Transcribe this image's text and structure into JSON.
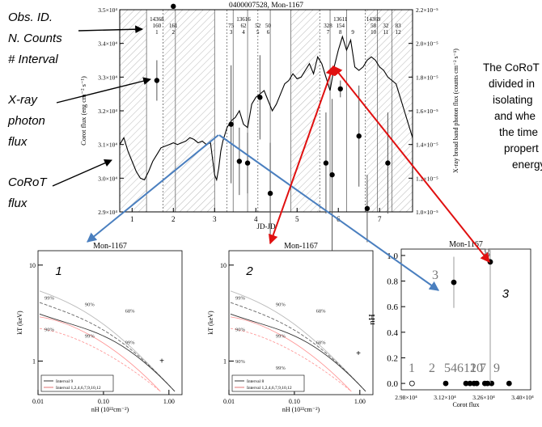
{
  "left_annotations": {
    "obs_id": "Obs. ID.",
    "n_counts": "N. Counts",
    "interval": "# Interval",
    "xray_1": "X-ray",
    "xray_2": "photon",
    "xray_3": "flux",
    "corot_1": "CoRoT",
    "corot_2": "flux"
  },
  "caption_lines": [
    "The CoRoT",
    "divided in",
    "isolating",
    "and whe",
    "the time",
    "propert",
    "energy"
  ],
  "arrow_colors": {
    "black": "#000000",
    "blue": "#4a7fbf",
    "red": "#e01010"
  },
  "chart_data": [
    {
      "type": "line",
      "title": "0400007528, Mon-1167",
      "xlabel": "JD-JD",
      "ylabel": "Corot flux (erg cm⁻² s⁻¹)",
      "y2label": "X-ray broad band photon flux (counts cm⁻² s⁻¹)",
      "xlim": [
        0.7,
        7.8
      ],
      "ylim": [
        29000,
        35000
      ],
      "y2lim": [
        1e-05,
        2.2e-05
      ],
      "xticks": [
        "1",
        "2",
        "3",
        "4",
        "5",
        "6",
        "7"
      ],
      "yticks": [
        "2.9×10⁴",
        "3.0×10⁴",
        "3.1×10⁴",
        "3.2×10⁴",
        "3.3×10⁴",
        "3.4×10⁴",
        "3.5×10⁴"
      ],
      "y2ticks": [
        "1.0×10⁻⁵",
        "1.2×10⁻⁵",
        "1.4×10⁻⁵",
        "1.6×10⁻⁵",
        "1.8×10⁻⁵",
        "2.0×10⁻⁵",
        "2.2×10⁻⁵"
      ],
      "hatched_x": [
        [
          0.7,
          1.35
        ],
        [
          1.75,
          3.0
        ],
        [
          4.85,
          5.55
        ],
        [
          6.65,
          7.8
        ]
      ],
      "interval_lines_x": [
        1.35,
        1.75,
        2.05,
        3.0,
        3.3,
        3.45,
        3.8,
        4.05,
        4.35,
        4.85,
        5.55,
        5.8,
        6.2,
        6.65,
        6.95,
        7.3
      ],
      "interval_labels": [
        {
          "x": 1.6,
          "lines": [
            "14368",
            "160",
            "1"
          ]
        },
        {
          "x": 2.0,
          "lines": [
            "",
            "161",
            "2"
          ]
        },
        {
          "x": 3.4,
          "lines": [
            "",
            "75",
            "3"
          ]
        },
        {
          "x": 3.7,
          "lines": [
            "13616",
            "62",
            "4"
          ]
        },
        {
          "x": 4.05,
          "lines": [
            "",
            "52",
            "5"
          ]
        },
        {
          "x": 4.3,
          "lines": [
            "",
            "50",
            "6"
          ]
        },
        {
          "x": 5.75,
          "lines": [
            "",
            "328",
            "7"
          ]
        },
        {
          "x": 6.05,
          "lines": [
            "13611",
            "154",
            "8"
          ]
        },
        {
          "x": 6.35,
          "lines": [
            "",
            "",
            "9"
          ]
        },
        {
          "x": 6.85,
          "lines": [
            "14369",
            "58",
            "10"
          ]
        },
        {
          "x": 7.15,
          "lines": [
            "",
            "32",
            "11"
          ]
        },
        {
          "x": 7.45,
          "lines": [
            "",
            "83",
            "12"
          ]
        }
      ],
      "corot_flux": {
        "x": [
          0.7,
          0.8,
          0.9,
          1.0,
          1.1,
          1.2,
          1.3,
          1.4,
          1.5,
          1.6,
          1.7,
          1.8,
          1.9,
          2.0,
          2.1,
          2.2,
          2.3,
          2.4,
          2.5,
          2.6,
          2.7,
          2.8,
          2.9,
          3.0,
          3.05,
          3.1,
          3.15,
          3.2,
          3.3,
          3.4,
          3.5,
          3.6,
          3.7,
          3.8,
          3.9,
          4.0,
          4.1,
          4.2,
          4.3,
          4.4,
          4.5,
          4.6,
          4.7,
          4.8,
          4.9,
          5.0,
          5.1,
          5.2,
          5.3,
          5.4,
          5.5,
          5.6,
          5.7,
          5.8,
          5.9,
          6.0,
          6.1,
          6.2,
          6.3,
          6.4,
          6.5,
          6.6,
          6.7,
          6.8,
          6.9,
          7.0,
          7.1,
          7.2,
          7.3,
          7.4,
          7.5,
          7.6,
          7.7,
          7.8
        ],
        "y": [
          31000,
          31200,
          30800,
          30500,
          30200,
          30000,
          29950,
          30200,
          30500,
          30700,
          30900,
          30950,
          31000,
          31050,
          31000,
          31050,
          31100,
          31200,
          31150,
          31050,
          31100,
          31000,
          31050,
          30100,
          29950,
          30300,
          30800,
          31100,
          31500,
          31700,
          31800,
          32000,
          31600,
          31500,
          32200,
          32400,
          32500,
          32600,
          32300,
          32000,
          32200,
          32500,
          32800,
          32900,
          33100,
          32950,
          33000,
          33200,
          33400,
          33100,
          33600,
          33400,
          33000,
          32600,
          33300,
          33800,
          34200,
          33800,
          34100,
          33300,
          33200,
          33300,
          33500,
          33600,
          33500,
          33300,
          33200,
          33000,
          32900,
          32800,
          32400,
          32000,
          31600,
          31200
        ]
      },
      "xray_flux": [
        {
          "x": 1.6,
          "y": 1.78e-05,
          "err": 1.2e-06
        },
        {
          "x": 2.0,
          "y": 2.22e-05,
          "err": 0.0
        },
        {
          "x": 3.4,
          "y": 1.52e-05,
          "err": 3.5e-06
        },
        {
          "x": 3.6,
          "y": 1.3e-05,
          "err": 2e-06
        },
        {
          "x": 3.8,
          "y": 1.29e-05,
          "err": 1.8e-06
        },
        {
          "x": 4.1,
          "y": 1.68e-05,
          "err": 2.5e-06
        },
        {
          "x": 4.35,
          "y": 1.11e-05,
          "err": 3e-06
        },
        {
          "x": 5.7,
          "y": 1.29e-05,
          "err": 3e-06
        },
        {
          "x": 5.85,
          "y": 1.22e-05,
          "err": 4.5e-06
        },
        {
          "x": 6.05,
          "y": 1.73e-05,
          "err": 5e-07
        },
        {
          "x": 6.5,
          "y": 1.45e-05,
          "err": 3e-06
        },
        {
          "x": 6.7,
          "y": 1.02e-05,
          "err": 2e-06
        },
        {
          "x": 7.2,
          "y": 1.29e-05,
          "err": 3e-06
        }
      ]
    },
    {
      "type": "contour",
      "panel_number": "1",
      "title": "Mon-1167",
      "xlabel": "nH (10²²cm⁻²)",
      "ylabel": "kT (keV)",
      "xticks": [
        "0.01",
        "0.10",
        "1.00"
      ],
      "yticks": [
        "1",
        "10"
      ],
      "contour_labels": [
        "99%",
        "90%",
        "68%",
        "90%",
        "99%",
        "99%"
      ],
      "legend": [
        "Interval 9",
        "Interval 1,2,4,6,7,9,10,12"
      ],
      "best_fit": {
        "nH": 0.78,
        "kT": 1.0
      }
    },
    {
      "type": "contour",
      "panel_number": "2",
      "title": "Mon-1167",
      "xlabel": "nH (10²²cm⁻²)",
      "ylabel": "kT (keV)",
      "xticks": [
        "0.01",
        "0.10",
        "1.00"
      ],
      "yticks": [
        "1",
        "10"
      ],
      "contour_labels": [
        "99%",
        "90%",
        "68%",
        "90%",
        "99%",
        "68%",
        "90%",
        "99%"
      ],
      "legend": [
        "Interval 8",
        "Interval 1,2,4,6,7,9,10,12"
      ],
      "best_fit": {
        "nH": 0.95,
        "kT": 1.2
      }
    },
    {
      "type": "scatter",
      "panel_number": "3",
      "title": "Mon-1167",
      "xlabel": "Corot flux",
      "ylabel": "nH",
      "xticks": [
        "2.98×10⁴",
        "3.12×10⁴",
        "3.26×10⁴",
        "3.40×10⁴"
      ],
      "yticks": [
        "0.0",
        "0.2",
        "0.4",
        "0.6",
        "0.8",
        "1.0"
      ],
      "xlim": [
        29400,
        34200
      ],
      "ylim": [
        -0.05,
        1.05
      ],
      "points": [
        {
          "label": "1",
          "x": 29800,
          "y": 0.0,
          "hollow": true
        },
        {
          "label": "2",
          "x": 31050,
          "y": 0.0
        },
        {
          "label": "3",
          "x": 31350,
          "y": 0.79,
          "err": 0.2
        },
        {
          "label": "4",
          "x": 31950,
          "y": 0.0
        },
        {
          "label": "5",
          "x": 32200,
          "y": 0.0
        },
        {
          "label": "6",
          "x": 32500,
          "y": 0.0
        },
        {
          "label": "7",
          "x": 32750,
          "y": 0.0
        },
        {
          "label": "8",
          "x": 32700,
          "y": 0.95,
          "err": 0.95
        },
        {
          "label": "9",
          "x": 33400,
          "y": 0.0
        },
        {
          "label": "10",
          "x": 32100,
          "y": 0.0
        },
        {
          "label": "11",
          "x": 31800,
          "y": 0.0
        },
        {
          "label": "12",
          "x": 32600,
          "y": 0.0
        }
      ],
      "visible_labels": [
        "1",
        "2",
        "5",
        "4",
        "6",
        "12",
        "10",
        "7",
        "9",
        "3",
        "8"
      ]
    }
  ]
}
